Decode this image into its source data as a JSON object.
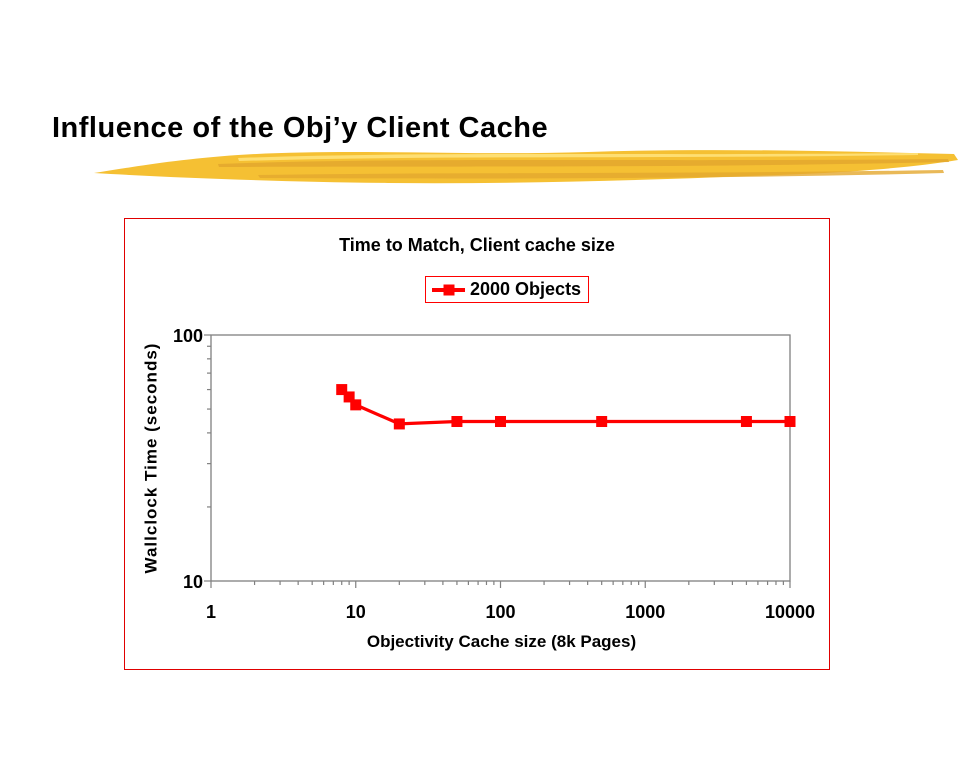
{
  "slide": {
    "title": "Influence of the Obj’y Client Cache"
  },
  "chart_data": {
    "type": "line",
    "title": "Time to Match, Client cache size",
    "xlabel": "Objectivity Cache size (8k Pages)",
    "ylabel": "Wallclock Time (seconds)",
    "x_scale": "log",
    "y_scale": "log",
    "xlim": [
      1,
      10000
    ],
    "ylim": [
      10,
      100
    ],
    "xticks": [
      "1",
      "10",
      "100",
      "1000",
      "10000"
    ],
    "yticks": [
      "10",
      "100"
    ],
    "grid": false,
    "legend_position": "top-center",
    "series": [
      {
        "name": "2000 Objects",
        "color": "#ff0000",
        "marker": "square",
        "x": [
          8,
          9,
          10,
          20,
          50,
          100,
          500,
          5000,
          10000
        ],
        "y": [
          60,
          56,
          52,
          43.5,
          44.5,
          44.5,
          44.5,
          44.5,
          44.5
        ]
      }
    ]
  },
  "colors": {
    "series": "#ff0000",
    "chart_border": "#e00000",
    "legend_border": "#ff0000",
    "axis": "#808080",
    "brush_main": "#f5c033",
    "brush_dark": "#e3a72e",
    "brush_light": "#ffe27a"
  }
}
